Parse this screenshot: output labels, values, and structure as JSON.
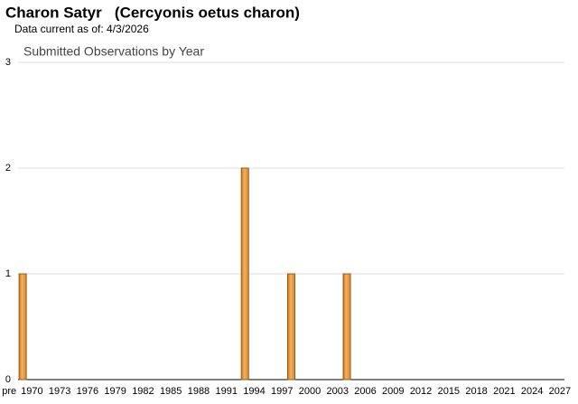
{
  "chart_data": {
    "type": "bar",
    "title": "Charon Satyr   (Cercyonis oetus charon)",
    "subtitle": "Data current as of: 4/3/2026",
    "chart_title": "Submitted Observations by Year",
    "categories": [
      "pre",
      "1970",
      null,
      null,
      "1973",
      null,
      null,
      "1976",
      null,
      null,
      "1979",
      null,
      null,
      "1982",
      null,
      null,
      "1985",
      null,
      null,
      "1988",
      null,
      null,
      "1991",
      null,
      null,
      "1994",
      null,
      null,
      "1997",
      null,
      null,
      "2000",
      null,
      null,
      "2003",
      null,
      null,
      "2006",
      null,
      null,
      "2009",
      null,
      null,
      "2012",
      null,
      null,
      "2015",
      null,
      null,
      "2018",
      null,
      null,
      "2021",
      null,
      null,
      "2024",
      null,
      null,
      "2027"
    ],
    "values": [
      1,
      0,
      0,
      0,
      0,
      0,
      0,
      0,
      0,
      0,
      0,
      0,
      0,
      0,
      0,
      0,
      0,
      0,
      0,
      0,
      0,
      0,
      0,
      0,
      2,
      0,
      0,
      0,
      0,
      1,
      0,
      0,
      0,
      0,
      0,
      1,
      0,
      0,
      0,
      0,
      0,
      0,
      0,
      0,
      0,
      0,
      0,
      0,
      0,
      0,
      0,
      0,
      0,
      0,
      0,
      0,
      0,
      0,
      0
    ],
    "color": "#eb9d45",
    "ylim": [
      0,
      3
    ],
    "yticks": [
      0,
      1,
      2,
      3
    ],
    "grid": true
  }
}
